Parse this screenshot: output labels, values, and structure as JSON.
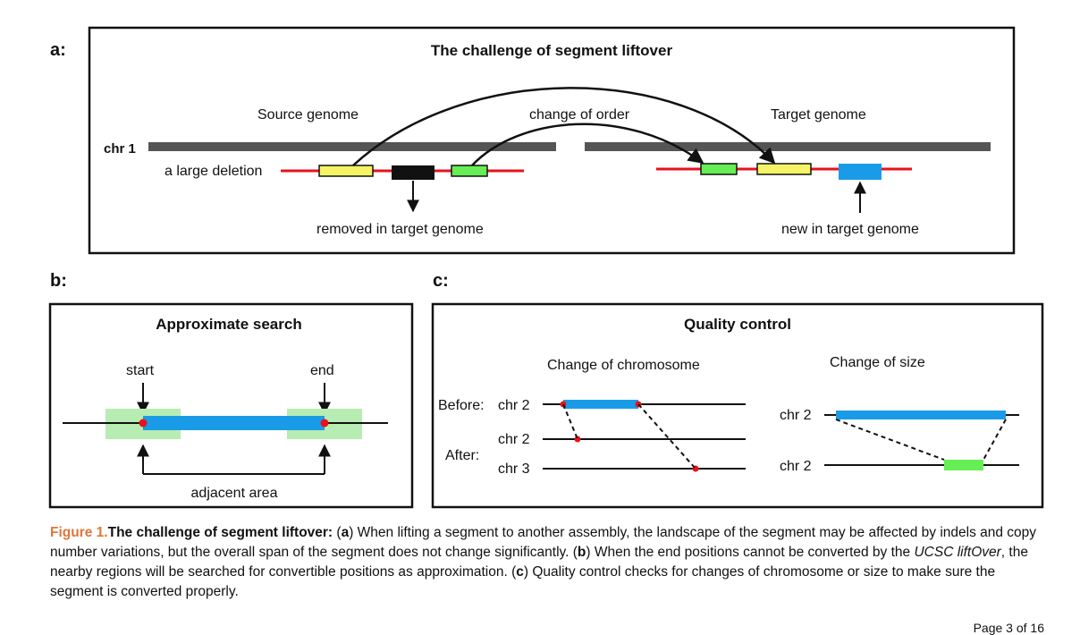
{
  "panel_a": {
    "label": "a:",
    "title": "The challenge of segment liftover",
    "source_genome": "Source genome",
    "target_genome": "Target genome",
    "change_of_order": "change of order",
    "chr_label": "chr 1",
    "large_deletion": "a large deletion",
    "removed_in_target": "removed in target genome",
    "new_in_target": "new in target genome"
  },
  "panel_b": {
    "label": "b:",
    "title": "Approximate search",
    "start": "start",
    "end": "end",
    "adjacent_area": "adjacent area"
  },
  "panel_c": {
    "label": "c:",
    "title": "Quality control",
    "change_of_chromosome": "Change of chromosome",
    "change_of_size": "Change of size",
    "before": "Before:",
    "after": "After:",
    "chr2_before": "chr 2",
    "chr2_after": "chr 2",
    "chr3_after": "chr 3",
    "size_chr2_top": "chr 2",
    "size_chr2_bottom": "chr 2"
  },
  "caption": {
    "fig_num": "Figure 1.",
    "title": "The challenge of segment liftover:",
    "part1_open": " (",
    "a_letter": "a",
    "part1_text": ") When lifting a segment to another assembly, the landscape of the segment may be affected by indels and copy number variations, but the overall span of the segment does not change significantly. (",
    "b_letter": "b",
    "part2_text": ") When the end positions cannot be converted by the ",
    "tool_name": "UCSC liftOver",
    "part3_text": ", the nearby regions will be searched for convertible positions as approximation. (",
    "c_letter": "c",
    "part4_text": ") Quality control checks for changes of chromosome or size to make sure the segment is converted properly."
  },
  "footer": {
    "page": "Page 3 of 16"
  },
  "colors": {
    "chromosome_gray": "#555555",
    "segment_red": "#e8121b",
    "yellow_block": "#f4f466",
    "green_block": "#66ee55",
    "blue_block": "#1a9be8",
    "adjacent_green": "#b7ecb2",
    "caption_accent": "#e0763a"
  }
}
